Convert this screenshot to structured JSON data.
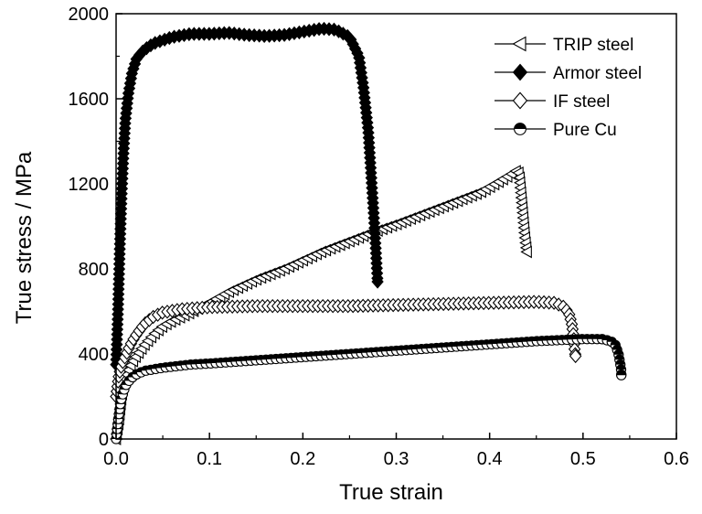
{
  "chart_data": {
    "type": "line",
    "title": "",
    "xlabel": "True strain",
    "ylabel": "True stress / MPa",
    "xlim": [
      0.0,
      0.6
    ],
    "ylim": [
      0,
      2000
    ],
    "xticks": [
      0.0,
      0.1,
      0.2,
      0.3,
      0.4,
      0.5,
      0.6
    ],
    "xtick_labels": [
      "0.0",
      "0.1",
      "0.2",
      "0.3",
      "0.4",
      "0.5",
      "0.6"
    ],
    "yticks": [
      0,
      400,
      800,
      1200,
      1600,
      2000
    ],
    "ytick_labels": [
      "0",
      "400",
      "800",
      "1200",
      "1600",
      "2000"
    ],
    "grid": false,
    "legend_position": "top-right",
    "series": [
      {
        "name": "TRIP steel",
        "marker": "triangle-left-open",
        "points": [
          [
            0.0,
            0
          ],
          [
            0.003,
            80
          ],
          [
            0.006,
            200
          ],
          [
            0.01,
            290
          ],
          [
            0.015,
            340
          ],
          [
            0.02,
            380
          ],
          [
            0.03,
            440
          ],
          [
            0.04,
            490
          ],
          [
            0.05,
            530
          ],
          [
            0.06,
            555
          ],
          [
            0.08,
            595
          ],
          [
            0.1,
            640
          ],
          [
            0.12,
            690
          ],
          [
            0.15,
            750
          ],
          [
            0.18,
            800
          ],
          [
            0.2,
            840
          ],
          [
            0.22,
            880
          ],
          [
            0.25,
            930
          ],
          [
            0.28,
            980
          ],
          [
            0.3,
            1010
          ],
          [
            0.33,
            1060
          ],
          [
            0.36,
            1110
          ],
          [
            0.39,
            1160
          ],
          [
            0.41,
            1210
          ],
          [
            0.425,
            1250
          ],
          [
            0.43,
            1265
          ],
          [
            0.432,
            1240
          ],
          [
            0.434,
            1150
          ],
          [
            0.436,
            1050
          ],
          [
            0.438,
            950
          ],
          [
            0.44,
            880
          ]
        ]
      },
      {
        "name": "Armor steel",
        "marker": "diamond-filled",
        "points": [
          [
            0.0,
            350
          ],
          [
            0.002,
            600
          ],
          [
            0.004,
            900
          ],
          [
            0.006,
            1150
          ],
          [
            0.008,
            1350
          ],
          [
            0.01,
            1500
          ],
          [
            0.013,
            1620
          ],
          [
            0.017,
            1720
          ],
          [
            0.022,
            1790
          ],
          [
            0.03,
            1830
          ],
          [
            0.04,
            1860
          ],
          [
            0.06,
            1890
          ],
          [
            0.08,
            1905
          ],
          [
            0.1,
            1905
          ],
          [
            0.12,
            1910
          ],
          [
            0.14,
            1900
          ],
          [
            0.16,
            1895
          ],
          [
            0.18,
            1900
          ],
          [
            0.2,
            1915
          ],
          [
            0.22,
            1930
          ],
          [
            0.235,
            1925
          ],
          [
            0.25,
            1890
          ],
          [
            0.26,
            1800
          ],
          [
            0.265,
            1650
          ],
          [
            0.27,
            1450
          ],
          [
            0.273,
            1250
          ],
          [
            0.276,
            1050
          ],
          [
            0.278,
            900
          ],
          [
            0.28,
            740
          ]
        ]
      },
      {
        "name": "IF steel",
        "marker": "diamond-open",
        "points": [
          [
            0.0,
            200
          ],
          [
            0.003,
            300
          ],
          [
            0.006,
            350
          ],
          [
            0.01,
            390
          ],
          [
            0.015,
            440
          ],
          [
            0.02,
            480
          ],
          [
            0.03,
            540
          ],
          [
            0.04,
            575
          ],
          [
            0.05,
            595
          ],
          [
            0.07,
            610
          ],
          [
            0.1,
            620
          ],
          [
            0.15,
            625
          ],
          [
            0.2,
            625
          ],
          [
            0.25,
            625
          ],
          [
            0.3,
            630
          ],
          [
            0.35,
            635
          ],
          [
            0.4,
            640
          ],
          [
            0.45,
            645
          ],
          [
            0.47,
            640
          ],
          [
            0.48,
            620
          ],
          [
            0.485,
            590
          ],
          [
            0.488,
            540
          ],
          [
            0.49,
            480
          ],
          [
            0.491,
            420
          ],
          [
            0.492,
            390
          ]
        ]
      },
      {
        "name": "Pure Cu",
        "marker": "circle-half",
        "points": [
          [
            0.0,
            0
          ],
          [
            0.002,
            80
          ],
          [
            0.005,
            180
          ],
          [
            0.01,
            250
          ],
          [
            0.015,
            280
          ],
          [
            0.02,
            300
          ],
          [
            0.03,
            320
          ],
          [
            0.05,
            335
          ],
          [
            0.08,
            350
          ],
          [
            0.1,
            355
          ],
          [
            0.15,
            370
          ],
          [
            0.2,
            385
          ],
          [
            0.25,
            400
          ],
          [
            0.3,
            415
          ],
          [
            0.35,
            430
          ],
          [
            0.4,
            445
          ],
          [
            0.45,
            460
          ],
          [
            0.5,
            470
          ],
          [
            0.52,
            470
          ],
          [
            0.53,
            460
          ],
          [
            0.535,
            440
          ],
          [
            0.538,
            400
          ],
          [
            0.54,
            350
          ],
          [
            0.541,
            320
          ],
          [
            0.541,
            300
          ]
        ]
      }
    ]
  }
}
